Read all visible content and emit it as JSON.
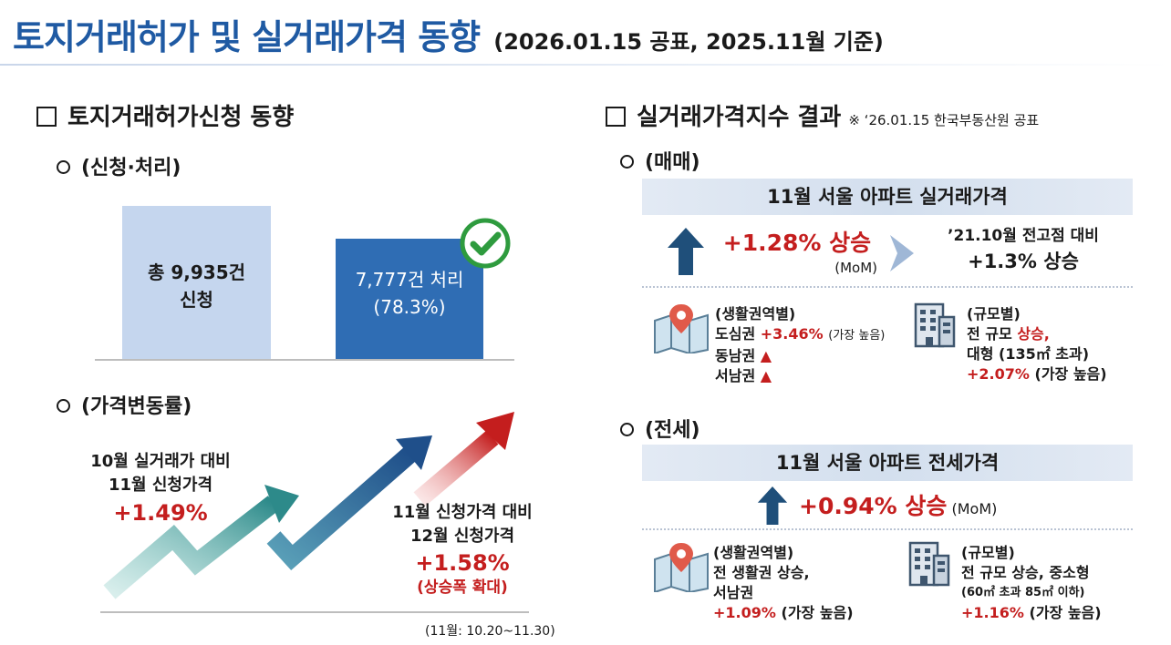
{
  "header": {
    "title": "토지거래허가 및 실거래가격 동향",
    "subtitle": "(2026.01.15 공표, 2025.11월 기준)"
  },
  "left": {
    "section_title": "토지거래허가신청 동향",
    "apply": {
      "heading": "(신청·처리)",
      "bar_total_line1": "총 9,935건",
      "bar_total_line2": "신청",
      "bar_processed_line1": "7,777건 처리",
      "bar_processed_line2": "(78.3%)",
      "total": 9935,
      "processed": 7777,
      "processed_rate_percent": 78.3
    },
    "price": {
      "heading": "(가격변동률)",
      "oct_line1": "10월 실거래가 대비",
      "oct_line2": "11월 신청가격",
      "oct_value": "+1.49%",
      "nov_line1": "11월 신청가격 대비",
      "nov_line2": "12월 신청가격",
      "nov_value": "+1.58%",
      "nov_note": "(상승폭 확대)",
      "footnote": "(11월: 10.20~11.30)"
    }
  },
  "right": {
    "section_title": "실거래가격지수 결과",
    "section_note": "※ ‘26.01.15 한국부동산원 공표",
    "sale": {
      "heading": "(매매)",
      "banner": "11월 서울 아파트 실거래가격",
      "value": "+1.28% 상승",
      "mom": "(MoM)",
      "peak_line1": "’21.10월 전고점 대비",
      "peak_line2": "+1.3% 상승",
      "region_title": "(생활권역별)",
      "region_l1_a": "도심권",
      "region_l1_b": "+3.46%",
      "region_l1_c": "(가장 높음)",
      "region_l2": "동남권",
      "region_l3": "서남권",
      "size_title": "(규모별)",
      "size_l1_a": "전 규모",
      "size_l1_b": "상승,",
      "size_l2": "대형 (135㎡ 초과)",
      "size_l3_a": "+2.07%",
      "size_l3_b": "(가장 높음)"
    },
    "jeonse": {
      "heading": "(전세)",
      "banner": "11월 서울 아파트 전세가격",
      "value": "+0.94% 상승",
      "mom": "(MoM)",
      "region_title": "(생활권역별)",
      "region_l1": "전 생활권 상승,",
      "region_l2": "서남권",
      "region_l3_a": "+1.09%",
      "region_l3_b": "(가장 높음)",
      "size_title": "(규모별)",
      "size_l1": "전 규모 상승, 중소형",
      "size_l2": "(60㎡ 초과 85㎡ 이하)",
      "size_l3_a": "+1.16%",
      "size_l3_b": "(가장 높음)"
    }
  },
  "colors": {
    "title_blue": "#1f5aa3",
    "bar_light": "#c5d6ee",
    "bar_dark": "#2f6db4",
    "red": "#c41e1e",
    "check_green": "#2e9b3e"
  }
}
